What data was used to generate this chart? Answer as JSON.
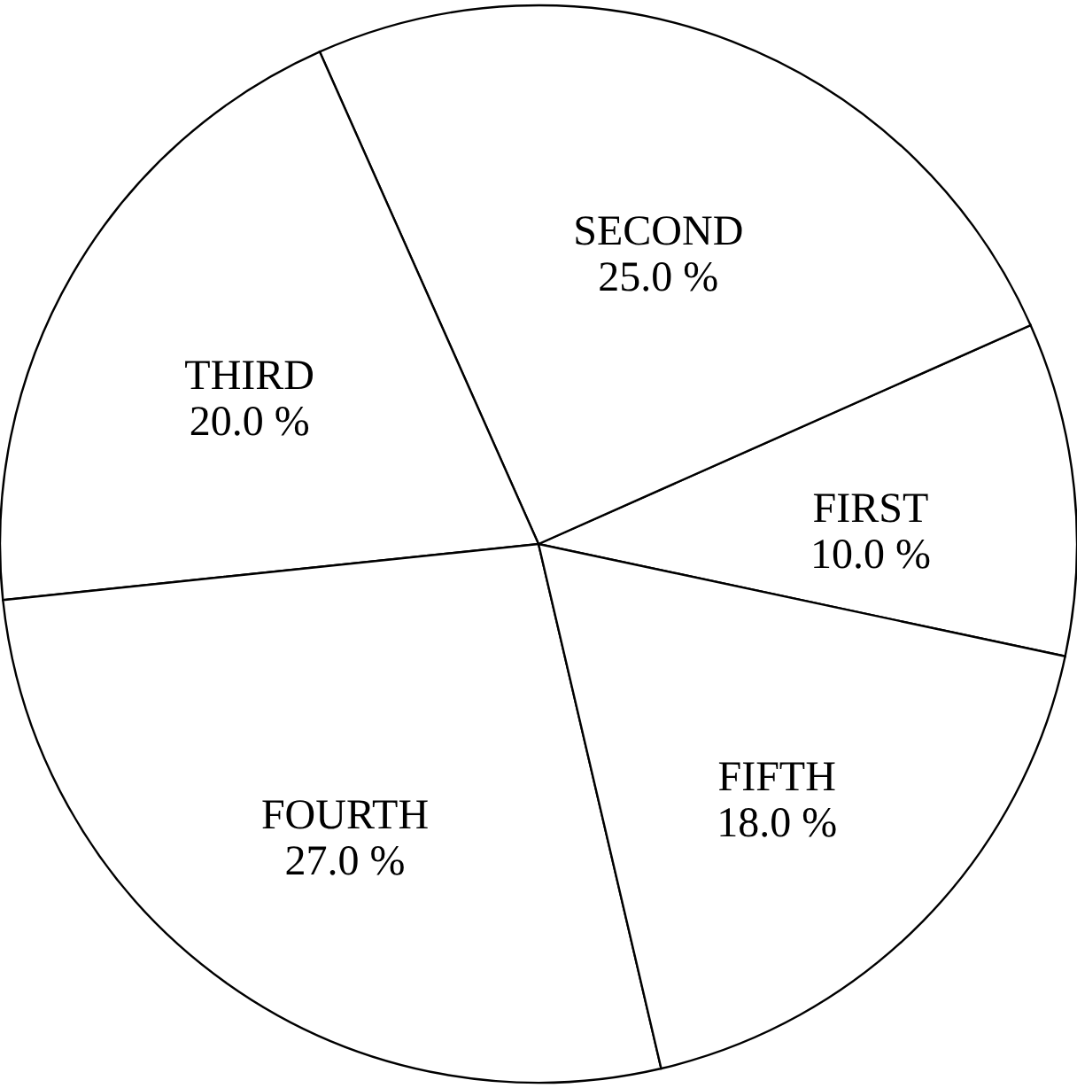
{
  "chart_data": {
    "type": "pie",
    "categories": [
      "FIRST",
      "SECOND",
      "THIRD",
      "FOURTH",
      "FIFTH"
    ],
    "values": [
      10,
      25,
      20,
      27,
      18
    ],
    "value_labels": [
      "10.0 %",
      "25.0 %",
      "20.0 %",
      "27.0 %",
      "18.0 %"
    ],
    "colors": [
      "#ffffff",
      "#ffffff",
      "#ffffff",
      "#ffffff",
      "#ffffff"
    ]
  }
}
